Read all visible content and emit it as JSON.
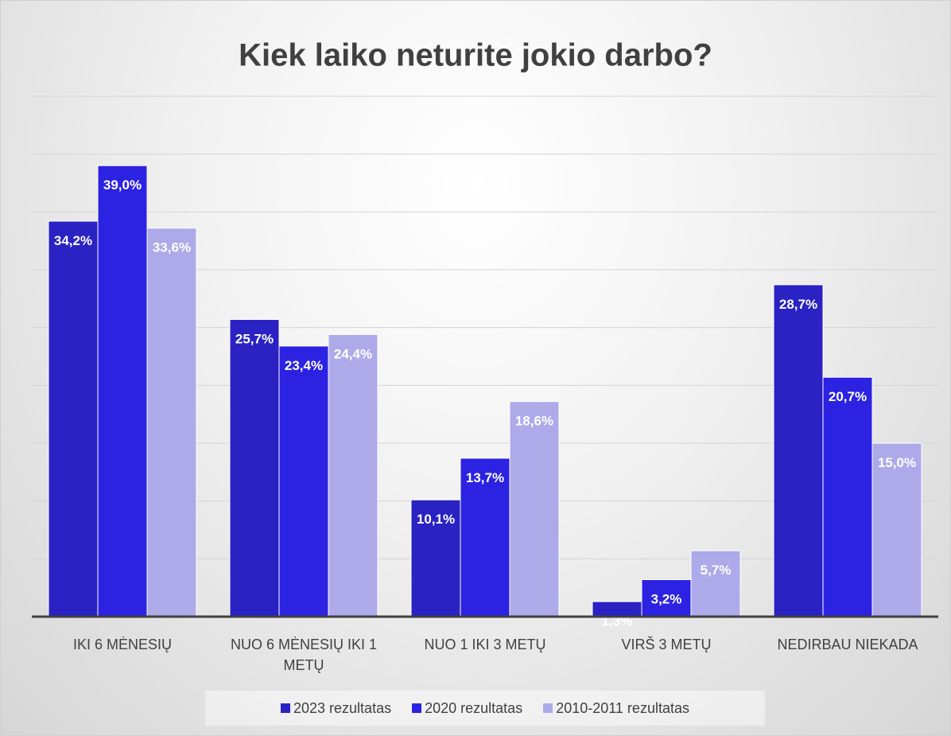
{
  "chart_data": {
    "type": "bar",
    "title": "Kiek laiko neturite jokio darbo?",
    "categories": [
      "IKI 6 MĖNESIŲ",
      "NUO 6 MĖNESIŲ IKI 1 METŲ",
      "NUO 1 IKI 3 METŲ",
      "VIRŠ 3 METŲ",
      "NEDIRBAU NIEKADA"
    ],
    "series": [
      {
        "name": "2023 rezultatas",
        "color": "#2a22c2",
        "values": [
          34.2,
          25.7,
          10.1,
          1.3,
          28.7
        ],
        "value_labels": [
          "34,2%",
          "25,7%",
          "10,1%",
          "1,3%",
          "28,7%"
        ]
      },
      {
        "name": "2020 rezultatas",
        "color": "#2c22e2",
        "values": [
          39.0,
          23.4,
          13.7,
          3.2,
          20.7
        ],
        "value_labels": [
          "39,0%",
          "23,4%",
          "13,7%",
          "3,2%",
          "20,7%"
        ]
      },
      {
        "name": "2010-2011 rezultatas",
        "color": "#aeaaea",
        "values": [
          33.6,
          24.4,
          18.6,
          5.7,
          15.0
        ],
        "value_labels": [
          "33,6%",
          "24,4%",
          "18,6%",
          "5,7%",
          "15,0%"
        ]
      }
    ],
    "ylim": [
      0,
      45
    ],
    "yticks": [
      0,
      5,
      10,
      15,
      20,
      25,
      30,
      35,
      40,
      45
    ],
    "grid": true,
    "legend": "bottom"
  }
}
